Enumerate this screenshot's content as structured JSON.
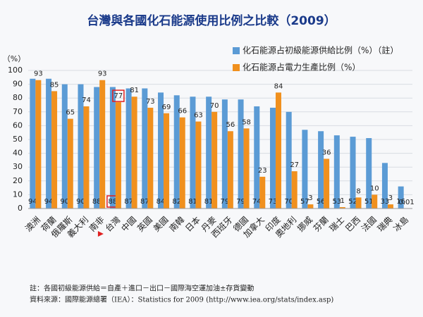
{
  "chart_data": {
    "type": "bar",
    "title": "台灣與各國化石能源使用比例之比較（2009）",
    "y_axis_label": "（%）",
    "categories": [
      "澳洲",
      "荷蘭",
      "俄羅斯",
      "義大利",
      "南非",
      "台灣",
      "中國",
      "英國",
      "美國",
      "南韓",
      "日本",
      "丹麥",
      "西班牙",
      "德國",
      "加拿大",
      "印度",
      "奧地利",
      "挪威",
      "芬蘭",
      "瑞士",
      "巴西",
      "法國",
      "瑞典",
      "冰島"
    ],
    "series": [
      {
        "name": "化石能源占初級能源供給比例（%）（註）",
        "color": "#5b9bd5",
        "values": [
          94,
          94,
          90,
          90,
          88,
          88,
          87,
          87,
          84,
          82,
          81,
          81,
          79,
          79,
          74,
          73,
          70,
          57,
          56,
          53,
          52,
          51,
          33,
          16
        ]
      },
      {
        "name": "化石能源占電力生產比例（%）",
        "color": "#f0901e",
        "values": [
          93,
          85,
          65,
          74,
          93,
          77,
          81,
          73,
          69,
          66,
          63,
          70,
          56,
          58,
          23,
          84,
          27,
          3,
          36,
          1,
          8,
          10,
          3,
          0.01
        ]
      }
    ],
    "ylim": [
      0,
      100
    ],
    "yticks": [
      0,
      10,
      20,
      30,
      40,
      50,
      60,
      70,
      80,
      90,
      100
    ],
    "highlight_index": 5,
    "highlight_color": "#e02020",
    "notes": [
      "註：各國初級能源供給＝自產＋進口－出口－國際海空運加油±存貨變動",
      "資料來源：國際能源總署（IEA）：Statistics for 2009 (http://www.iea.org/stats/index.asp)"
    ]
  }
}
